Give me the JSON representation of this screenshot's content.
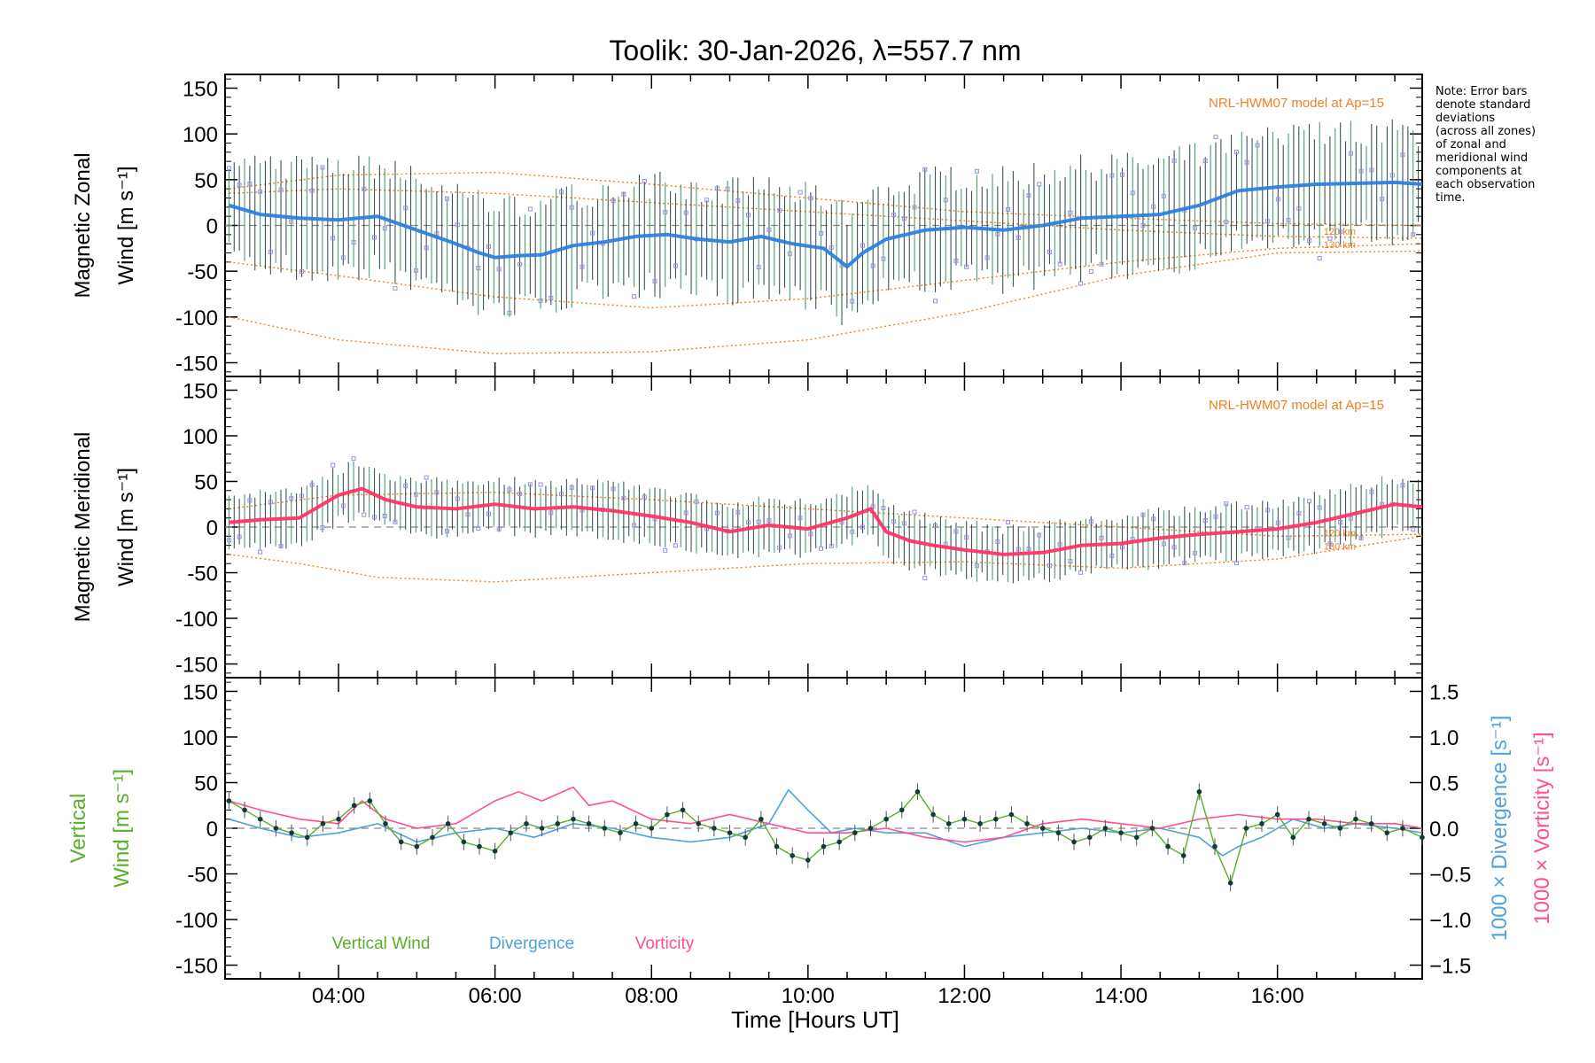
{
  "chart_data": {
    "title": "Toolik: 30-Jan-2026, λ=557.7 nm",
    "xlabel": "Time [Hours UT]",
    "xlim": [
      2.55,
      17.85
    ],
    "x_ticks": [
      "04:00",
      "06:00",
      "08:00",
      "10:00",
      "12:00",
      "14:00",
      "16:00"
    ],
    "x_tick_values": [
      4,
      6,
      8,
      10,
      12,
      14,
      16
    ],
    "note": "Note: Error bars\ndenote standard\ndeviations\n(across all zones)\nof zonal and\nmeridional wind\ncomponents at\neach observation\ntime.",
    "colors": {
      "zonal": "#2b7fe0",
      "meridional": "#ff3366",
      "vertical": "#58b028",
      "divergence": "#4ea3dd",
      "vorticity": "#ff4f91",
      "model": "#f08020",
      "scatter": "#9b90e0",
      "errbar_dark": "#1a3a3a",
      "errbar_green": "#2e8b57"
    },
    "panels": [
      {
        "type": "line",
        "name": "zonal",
        "ylabel_line1": "Magnetic Zonal",
        "ylabel_line2": "Wind [m s⁻¹]",
        "ylim": [
          -165,
          165
        ],
        "y_ticks": [
          150,
          100,
          50,
          0,
          -50,
          -100,
          -150
        ],
        "model_label": "NRL-HWM07 model at Ap=15",
        "model_alt_labels": [
          "120 km",
          "130 km"
        ],
        "series_x": [
          2.6,
          3.0,
          3.5,
          4.0,
          4.5,
          5.0,
          5.5,
          5.8,
          6.0,
          6.3,
          6.6,
          7.0,
          7.4,
          7.8,
          8.2,
          8.6,
          9.0,
          9.4,
          9.8,
          10.2,
          10.5,
          10.7,
          11.0,
          11.5,
          12.0,
          12.5,
          13.0,
          13.5,
          14.0,
          14.5,
          15.0,
          15.5,
          16.0,
          16.5,
          17.0,
          17.5,
          17.85
        ],
        "series_y": [
          22,
          12,
          8,
          6,
          10,
          -5,
          -20,
          -30,
          -35,
          -33,
          -32,
          -22,
          -18,
          -12,
          -10,
          -15,
          -18,
          -12,
          -20,
          -25,
          -45,
          -30,
          -15,
          -5,
          -2,
          -5,
          0,
          8,
          10,
          12,
          22,
          38,
          42,
          45,
          46,
          47,
          45
        ],
        "model_curves": [
          {
            "x": [
              2.6,
              4,
              6,
              8,
              10,
              12,
              14,
              16,
              17.85
            ],
            "y": [
              -100,
              -125,
              -140,
              -138,
              -125,
              -95,
              -55,
              -30,
              -28
            ]
          },
          {
            "x": [
              2.6,
              4,
              6,
              8,
              10,
              12,
              14,
              16,
              17.85
            ],
            "y": [
              -40,
              -55,
              -78,
              -90,
              -80,
              -60,
              -40,
              -25,
              -20
            ]
          },
          {
            "x": [
              2.6,
              4,
              6,
              8,
              10,
              12,
              14,
              16,
              17.85
            ],
            "y": [
              40,
              55,
              58,
              45,
              30,
              15,
              8,
              2,
              0
            ]
          },
          {
            "x": [
              2.6,
              4,
              6,
              8,
              10,
              12,
              14,
              16,
              17.85
            ],
            "y": [
              35,
              40,
              35,
              25,
              15,
              5,
              -5,
              -12,
              -14
            ]
          }
        ]
      },
      {
        "type": "line",
        "name": "meridional",
        "ylabel_line1": "Magnetic Meridional",
        "ylabel_line2": "Wind [m s⁻¹]",
        "ylim": [
          -165,
          165
        ],
        "y_ticks": [
          150,
          100,
          50,
          0,
          -50,
          -100,
          -150
        ],
        "model_label": "NRL-HWM07 model at Ap=15",
        "model_alt_labels": [
          "120 km",
          "130 km"
        ],
        "series_x": [
          2.6,
          3.0,
          3.5,
          3.8,
          4.0,
          4.3,
          4.6,
          5.0,
          5.5,
          6.0,
          6.5,
          7.0,
          7.5,
          8.0,
          8.5,
          9.0,
          9.5,
          10.0,
          10.5,
          10.8,
          11.0,
          11.3,
          11.6,
          12.0,
          12.5,
          13.0,
          13.5,
          14.0,
          14.5,
          15.0,
          15.5,
          16.0,
          16.5,
          17.0,
          17.5,
          17.85
        ],
        "series_y": [
          5,
          8,
          10,
          25,
          35,
          42,
          30,
          22,
          20,
          25,
          20,
          22,
          18,
          12,
          5,
          -5,
          2,
          -2,
          10,
          20,
          -5,
          -15,
          -20,
          -25,
          -30,
          -28,
          -20,
          -18,
          -12,
          -8,
          -5,
          -2,
          5,
          15,
          25,
          22
        ],
        "model_curves": [
          {
            "x": [
              2.6,
              3.5,
              4.5,
              6,
              8,
              10,
              12,
              14,
              16,
              17.85
            ],
            "y": [
              -30,
              -40,
              -55,
              -60,
              -50,
              -40,
              -38,
              -45,
              -35,
              -10
            ]
          },
          {
            "x": [
              2.6,
              4,
              6,
              8,
              10,
              12,
              14,
              16,
              17.85
            ],
            "y": [
              20,
              35,
              38,
              30,
              20,
              10,
              0,
              -10,
              -8
            ]
          }
        ]
      },
      {
        "type": "line",
        "name": "vertical",
        "ylabel_line1": "Vertical",
        "ylabel_line2": "Wind [m s⁻¹]",
        "ylim": [
          -165,
          165
        ],
        "y_ticks": [
          150,
          100,
          50,
          0,
          -50,
          -100,
          -150
        ],
        "right_ylim": [
          -1.65,
          1.65
        ],
        "right_y_ticks": [
          "1.5",
          "1.0",
          "0.5",
          "0.0",
          "−0.5",
          "−1.0",
          "−1.5"
        ],
        "right_y_tick_values": [
          1.5,
          1.0,
          0.5,
          0.0,
          -0.5,
          -1.0,
          -1.5
        ],
        "right_label_divergence": "1000 × Divergence [s⁻¹]",
        "right_label_vorticity": "1000 × Vorticity [s⁻¹]",
        "legend": [
          "Vertical Wind",
          "Divergence",
          "Vorticity"
        ],
        "vertical_x": [
          2.6,
          2.8,
          3.0,
          3.2,
          3.4,
          3.6,
          3.8,
          4.0,
          4.2,
          4.4,
          4.6,
          4.8,
          5.0,
          5.2,
          5.4,
          5.6,
          5.8,
          6.0,
          6.2,
          6.4,
          6.6,
          6.8,
          7.0,
          7.2,
          7.4,
          7.6,
          7.8,
          8.0,
          8.2,
          8.4,
          8.6,
          8.8,
          9.0,
          9.2,
          9.4,
          9.6,
          9.8,
          10.0,
          10.2,
          10.4,
          10.6,
          10.8,
          11.0,
          11.2,
          11.4,
          11.6,
          11.8,
          12.0,
          12.2,
          12.4,
          12.6,
          12.8,
          13.0,
          13.2,
          13.4,
          13.6,
          13.8,
          14.0,
          14.2,
          14.4,
          14.6,
          14.8,
          15.0,
          15.2,
          15.4,
          15.6,
          15.8,
          16.0,
          16.2,
          16.4,
          16.6,
          16.8,
          17.0,
          17.2,
          17.4,
          17.6,
          17.85
        ],
        "vertical_y": [
          30,
          20,
          10,
          0,
          -5,
          -10,
          5,
          10,
          25,
          30,
          5,
          -15,
          -20,
          -10,
          5,
          -15,
          -20,
          -25,
          -5,
          5,
          0,
          5,
          10,
          5,
          0,
          -5,
          5,
          0,
          15,
          20,
          5,
          0,
          -5,
          -10,
          10,
          -20,
          -30,
          -35,
          -20,
          -15,
          -5,
          0,
          10,
          20,
          40,
          15,
          5,
          10,
          5,
          10,
          15,
          5,
          0,
          -5,
          -15,
          -10,
          0,
          -5,
          -10,
          0,
          -20,
          -30,
          40,
          -20,
          -60,
          0,
          5,
          15,
          -10,
          10,
          5,
          0,
          10,
          5,
          -5,
          0,
          -10
        ],
        "divergence_x": [
          2.6,
          3.0,
          3.5,
          4.0,
          4.5,
          5.0,
          5.5,
          6.0,
          6.5,
          7.0,
          7.5,
          8.0,
          8.5,
          9.0,
          9.5,
          9.75,
          10.0,
          10.3,
          10.6,
          11.0,
          11.5,
          12.0,
          12.5,
          13.0,
          13.5,
          14.0,
          14.5,
          15.0,
          15.3,
          15.5,
          15.8,
          16.2,
          16.6,
          17.0,
          17.5,
          17.85
        ],
        "divergence_y": [
          0.1,
          0.0,
          -0.1,
          -0.05,
          0.05,
          -0.15,
          -0.05,
          0.0,
          -0.1,
          0.05,
          0.0,
          -0.1,
          -0.15,
          -0.1,
          0.05,
          0.42,
          0.2,
          -0.05,
          0.0,
          -0.05,
          -0.05,
          -0.2,
          -0.1,
          -0.05,
          0.0,
          -0.05,
          0.0,
          -0.1,
          -0.3,
          -0.2,
          -0.1,
          0.1,
          0.0,
          0.05,
          0.0,
          -0.05
        ],
        "vorticity_x": [
          2.6,
          3.0,
          3.5,
          4.0,
          4.3,
          4.6,
          5.0,
          5.5,
          6.0,
          6.3,
          6.6,
          7.0,
          7.2,
          7.5,
          8.0,
          8.5,
          9.0,
          9.5,
          10.0,
          10.5,
          11.0,
          11.5,
          12.0,
          12.5,
          13.0,
          13.5,
          14.0,
          14.5,
          15.0,
          15.5,
          16.0,
          16.5,
          17.0,
          17.5,
          17.85
        ],
        "vorticity_y": [
          0.3,
          0.2,
          0.1,
          0.05,
          0.3,
          0.1,
          0.0,
          0.05,
          0.3,
          0.4,
          0.3,
          0.45,
          0.25,
          0.3,
          0.1,
          0.05,
          0.15,
          0.05,
          -0.05,
          -0.05,
          0.0,
          -0.1,
          -0.15,
          -0.1,
          0.05,
          0.1,
          0.05,
          0.0,
          0.1,
          0.15,
          0.1,
          0.1,
          0.05,
          0.05,
          0.0
        ]
      }
    ]
  }
}
